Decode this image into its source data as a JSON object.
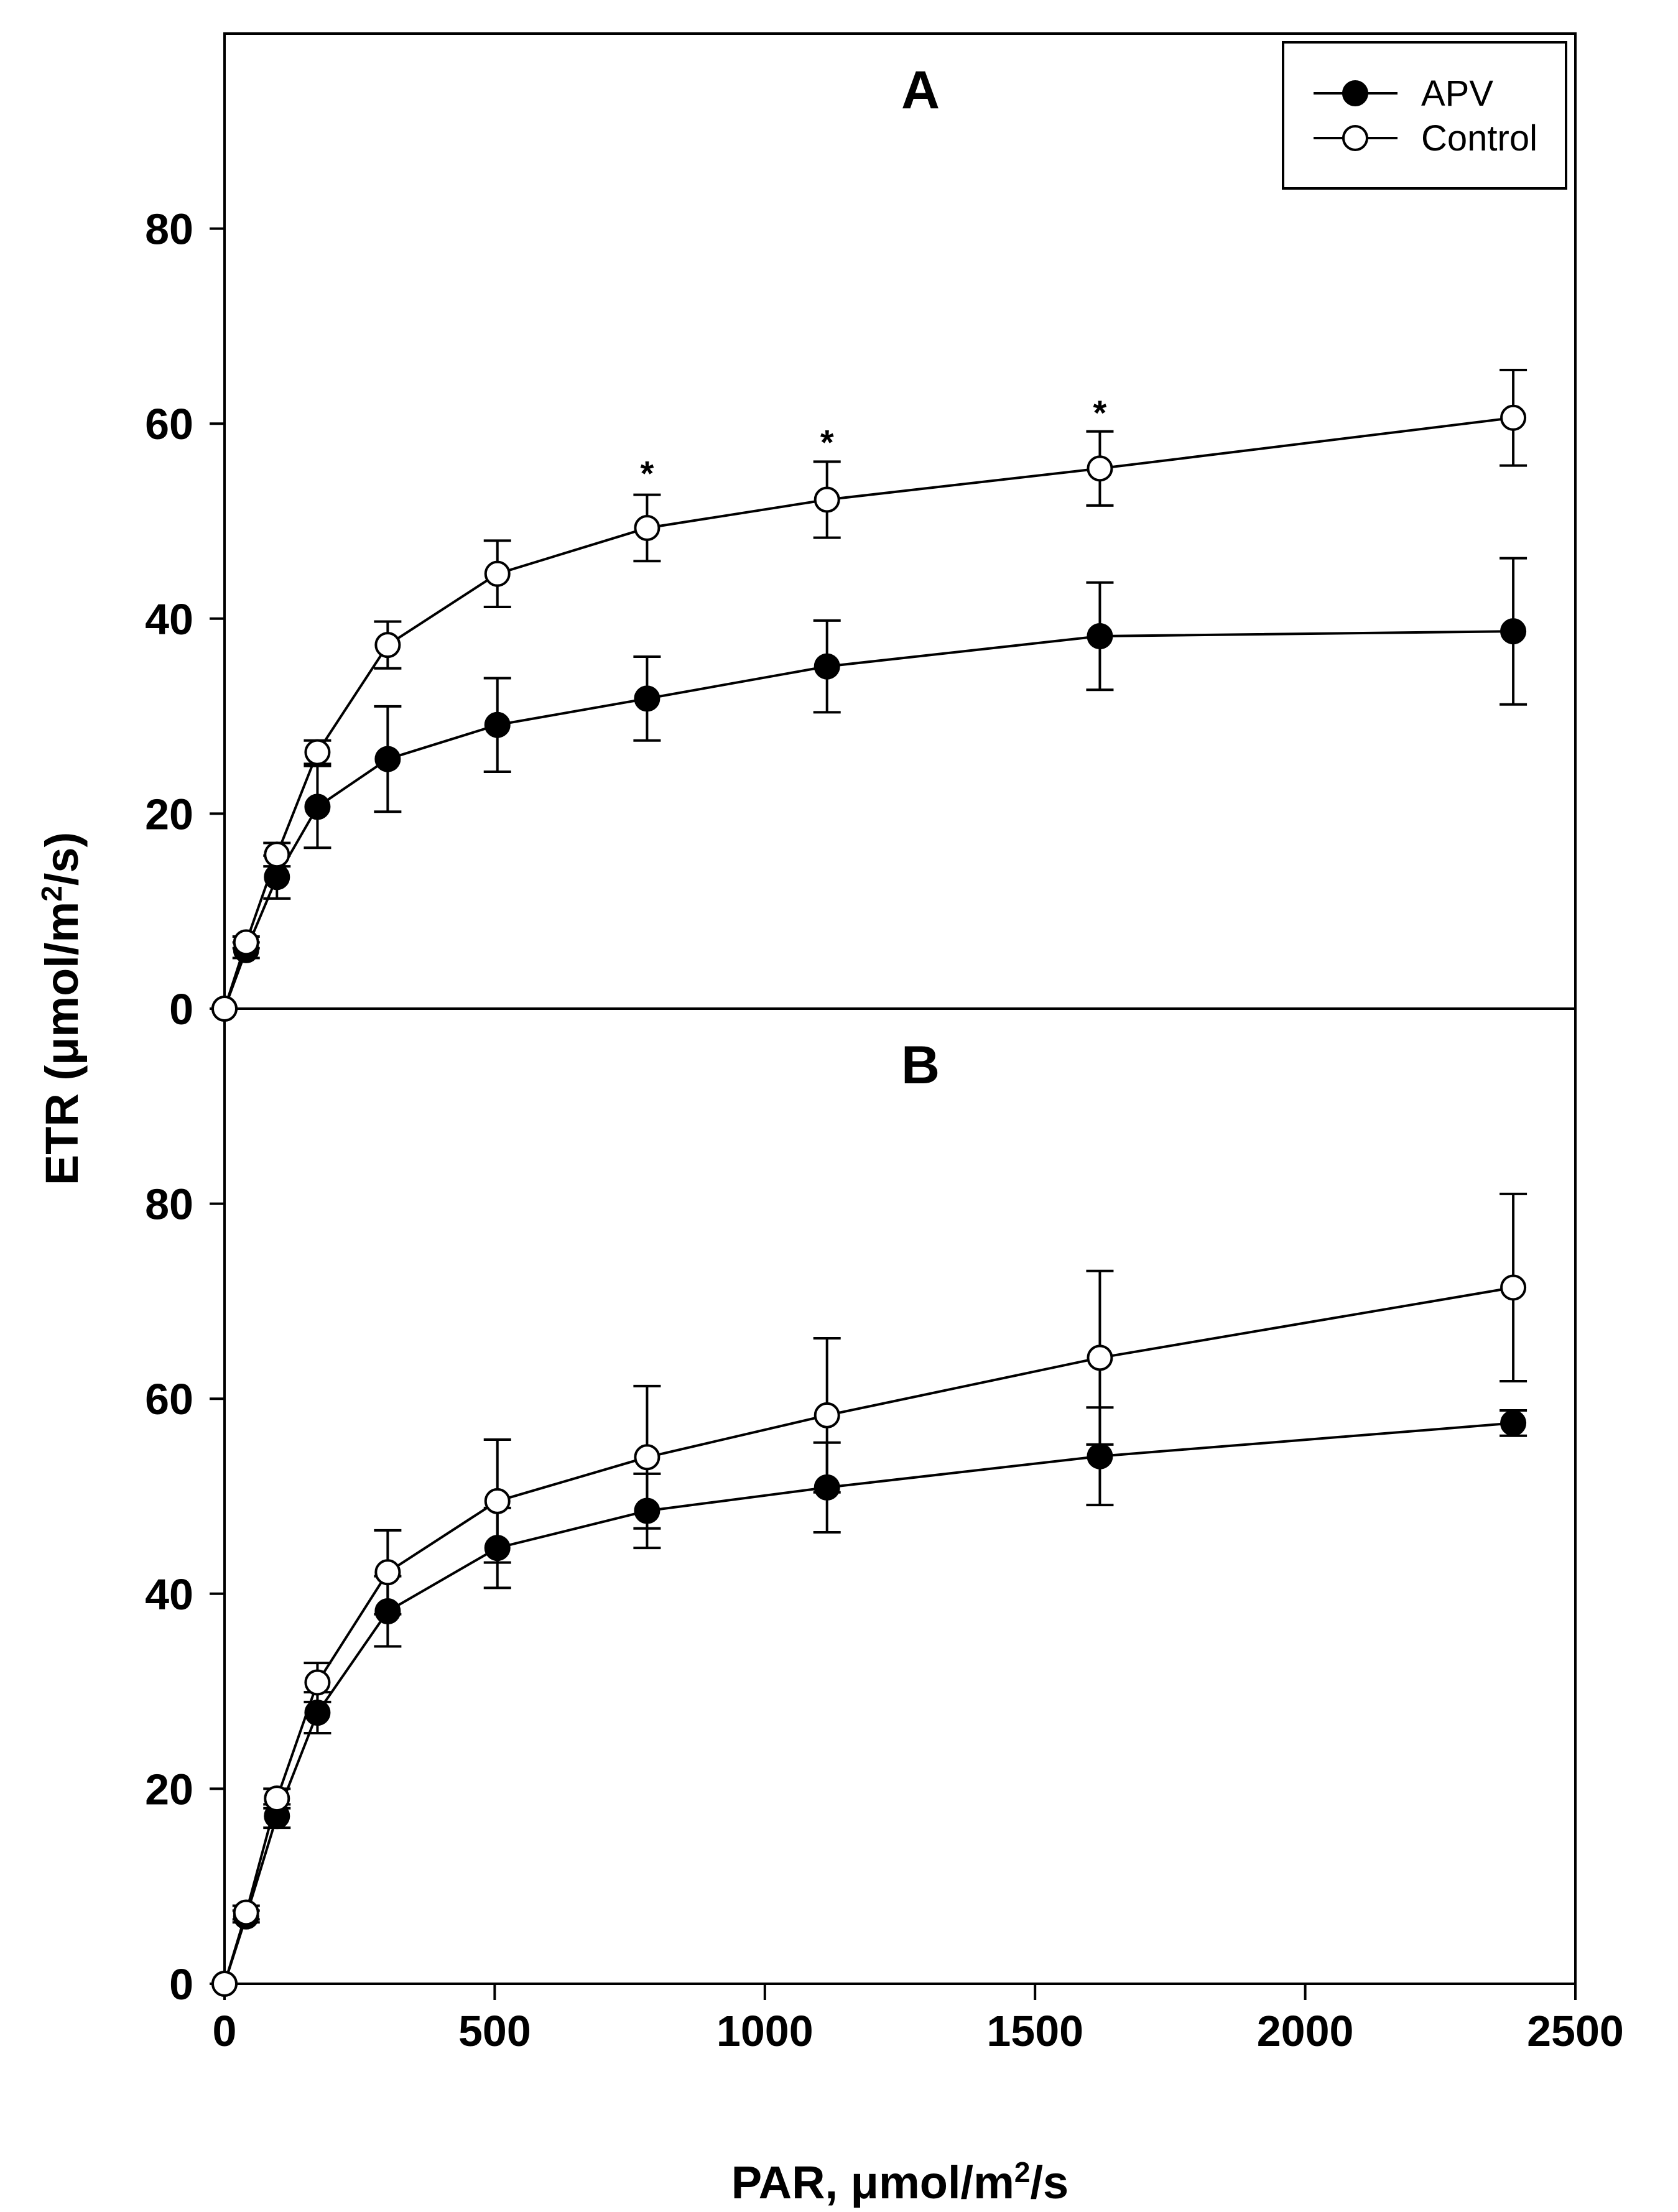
{
  "chart_data": {
    "type": "line",
    "shared_x_axis": {
      "label_prefix": "PAR, ",
      "label_mu": "μ",
      "label_unit": "mol/m",
      "label_sup": "2",
      "label_suffix": "/s",
      "xlim": [
        0,
        2500
      ],
      "ticks": [
        0,
        500,
        1000,
        1500,
        2000,
        2500
      ],
      "tick_labels": [
        "0",
        "500",
        "1000",
        "1500",
        "2000",
        "2500"
      ]
    },
    "shared_y_axis": {
      "label_prefix": "ETR (",
      "label_mu": "μ",
      "label_unit": "mol/m",
      "label_sup": "2",
      "label_suffix": "/s)",
      "ylim": [
        0,
        100
      ],
      "ticks": [
        0,
        20,
        40,
        60,
        80
      ],
      "tick_labels": [
        "0",
        "20",
        "40",
        "60",
        "80"
      ]
    },
    "legend": {
      "position": "top-right",
      "entries": [
        {
          "name": "APV",
          "marker": "filled-circle"
        },
        {
          "name": "Control",
          "marker": "open-circle"
        }
      ]
    },
    "panels": [
      {
        "label": "A",
        "x": [
          0,
          40,
          97,
          172,
          302,
          505,
          782,
          1115,
          1620,
          2385
        ],
        "series": [
          {
            "name": "APV",
            "marker": "filled-circle",
            "values": [
              0,
              6,
              13.5,
              20.7,
              25.6,
              29.1,
              31.8,
              35.1,
              38.2,
              38.7
            ],
            "errors": [
              0,
              0.8,
              2.2,
              4.2,
              5.4,
              4.8,
              4.3,
              4.7,
              5.5,
              7.5
            ]
          },
          {
            "name": "Control",
            "marker": "open-circle",
            "values": [
              0,
              6.8,
              15.8,
              26.3,
              37.3,
              44.6,
              49.3,
              52.2,
              55.4,
              60.6
            ],
            "errors": [
              0,
              0.6,
              1.2,
              1.2,
              2.4,
              3.4,
              3.4,
              3.9,
              3.8,
              4.9
            ]
          }
        ],
        "significance": [
          {
            "x": 782,
            "y": 55.2,
            "text": "*"
          },
          {
            "x": 1115,
            "y": 58.4,
            "text": "*"
          },
          {
            "x": 1620,
            "y": 61.4,
            "text": "*"
          }
        ]
      },
      {
        "label": "B",
        "x": [
          0,
          40,
          97,
          172,
          302,
          505,
          782,
          1115,
          1620,
          2385
        ],
        "series": [
          {
            "name": "APV",
            "marker": "filled-circle",
            "values": [
              0,
              6.9,
              17.2,
              27.8,
              38.2,
              44.7,
              48.5,
              50.9,
              54.1,
              57.5
            ],
            "errors": [
              0,
              0.6,
              1.2,
              2.1,
              3.6,
              4.1,
              3.8,
              4.6,
              5.0,
              1.3
            ]
          },
          {
            "name": "Control",
            "marker": "open-circle",
            "values": [
              0,
              7.3,
              19.0,
              30.9,
              42.2,
              49.5,
              54.0,
              58.3,
              64.2,
              71.4
            ],
            "errors": [
              0,
              0.7,
              1.0,
              2.0,
              4.3,
              6.3,
              7.3,
              7.9,
              8.9,
              9.6
            ]
          }
        ]
      }
    ]
  },
  "colors": {
    "background": "#ffffff",
    "ink": "#000000",
    "open_marker_fill": "#ffffff"
  }
}
